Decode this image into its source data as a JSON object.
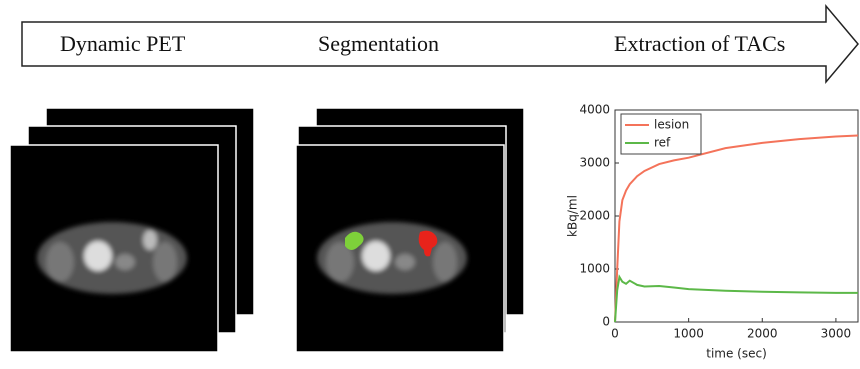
{
  "pipeline": {
    "steps": [
      "Dynamic PET",
      "Segmentation",
      "Extraction of TACs"
    ]
  },
  "chart_data": {
    "type": "line",
    "x": [
      0,
      30,
      60,
      100,
      150,
      200,
      300,
      400,
      600,
      800,
      1000,
      1500,
      2000,
      2500,
      3000,
      3300
    ],
    "series": [
      {
        "name": "lesion",
        "color": "#f4735a",
        "values": [
          0,
          1000,
          1900,
          2300,
          2480,
          2600,
          2750,
          2850,
          2980,
          3050,
          3100,
          3280,
          3380,
          3450,
          3500,
          3520
        ]
      },
      {
        "name": "ref",
        "color": "#5cb848",
        "values": [
          0,
          600,
          850,
          760,
          720,
          780,
          700,
          670,
          680,
          650,
          620,
          590,
          570,
          560,
          550,
          550
        ]
      }
    ],
    "xlim": [
      0,
      3300
    ],
    "ylim": [
      0,
      4000
    ],
    "xticks": [
      0,
      1000,
      2000,
      3000
    ],
    "yticks": [
      0,
      1000,
      2000,
      3000,
      4000
    ],
    "xlabel": "time (sec)",
    "ylabel": "kBq/ml",
    "legend": "upper-left"
  }
}
